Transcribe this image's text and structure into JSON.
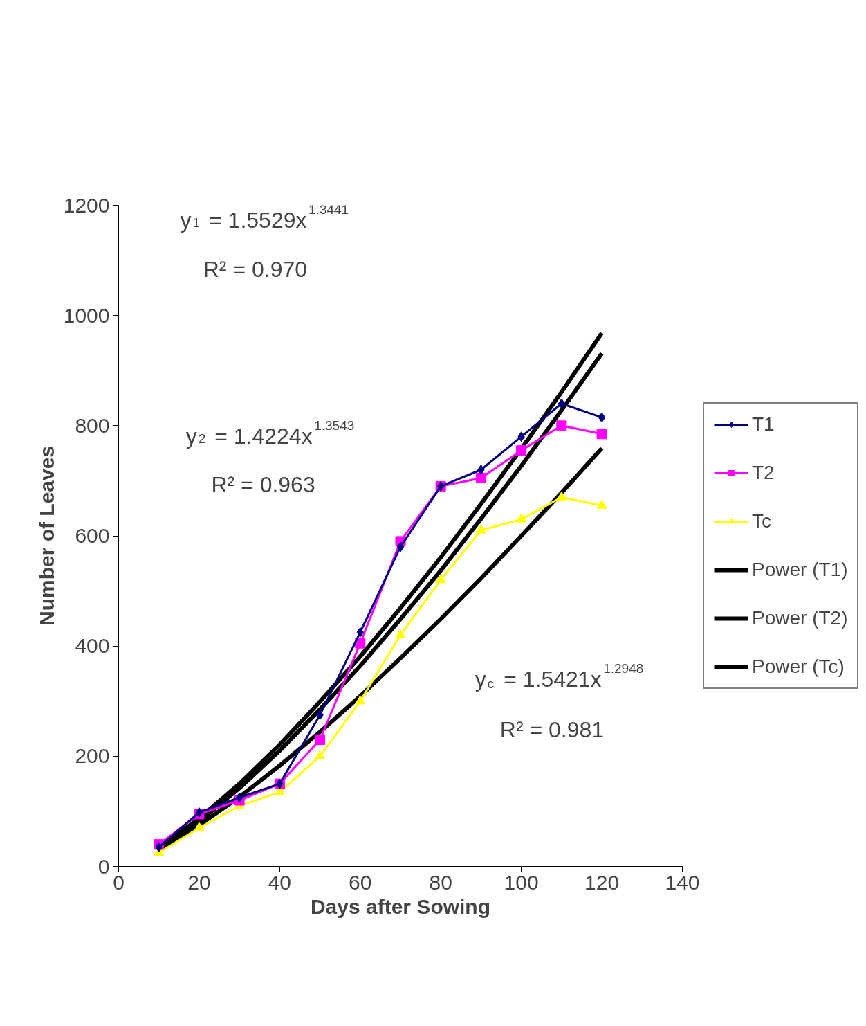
{
  "chart_data": {
    "type": "line",
    "xlabel": "Days after Sowing",
    "ylabel": "Number of Leaves",
    "x": [
      10,
      20,
      30,
      40,
      50,
      60,
      70,
      80,
      90,
      100,
      110,
      120
    ],
    "series": [
      {
        "name": "T1",
        "color": "#000080",
        "marker": "diamond",
        "values": [
          35,
          98,
          125,
          150,
          275,
          425,
          580,
          690,
          720,
          780,
          840,
          815
        ]
      },
      {
        "name": "T2",
        "color": "#ff00ff",
        "marker": "square",
        "values": [
          40,
          95,
          120,
          150,
          230,
          405,
          590,
          690,
          705,
          755,
          800,
          785
        ]
      },
      {
        "name": "Tc",
        "color": "#ffff00",
        "marker": "triangle",
        "values": [
          25,
          70,
          110,
          135,
          200,
          300,
          420,
          520,
          610,
          630,
          670,
          655
        ]
      },
      {
        "name": "Power (T1)",
        "color": "#000000",
        "marker": "none",
        "values": [
          34,
          87,
          150,
          221,
          299,
          381,
          469,
          561,
          658,
          758,
          861,
          968
        ]
      },
      {
        "name": "Power (T2)",
        "color": "#000000",
        "marker": "none",
        "values": [
          32,
          82,
          142,
          210,
          285,
          364,
          449,
          537,
          631,
          727,
          828,
          931
        ]
      },
      {
        "name": "Power (Tc)",
        "color": "#000000",
        "marker": "none",
        "values": [
          30,
          75,
          126,
          183,
          244,
          309,
          378,
          449,
          523,
          600,
          678,
          759
        ]
      }
    ],
    "xlim": [
      0,
      140
    ],
    "xticks": [
      0,
      20,
      40,
      60,
      80,
      100,
      120,
      140
    ],
    "ylim": [
      0,
      1200
    ],
    "yticks": [
      0,
      200,
      400,
      600,
      800,
      1000,
      1200
    ],
    "grid": false,
    "legend": "right",
    "annotations": [
      "y$_{1}$ = 1.5529x$^{1.3441}$",
      "R² = 0.970",
      "y$_{2}$ = 1.4224x$^{1.3543}$",
      "R² = 0.963",
      "y$_{c}$ = 1.5421x$^{1.2948}$",
      "R² = 0.981"
    ]
  }
}
